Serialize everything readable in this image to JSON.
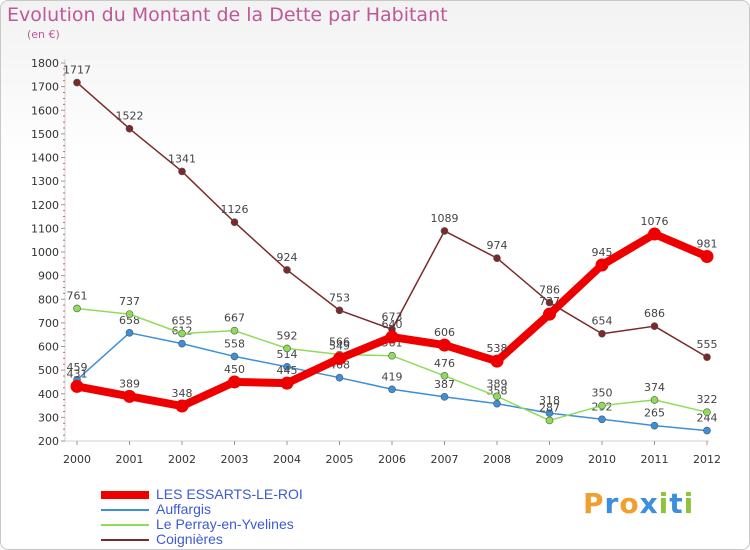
{
  "header": {
    "title": "Evolution du Montant de la Dette par Habitant",
    "subtitle": "(en €)"
  },
  "logo": {
    "letters": [
      "P",
      "r",
      "o",
      "x",
      "i",
      "t",
      "i"
    ],
    "colors": [
      "#f0a030",
      "#3c8fd8",
      "#f0a030",
      "#3c8fd8",
      "#8fc43a",
      "#3c8fd8",
      "#8fc43a"
    ]
  },
  "chart_data": {
    "type": "line",
    "x": [
      "2000",
      "2001",
      "2002",
      "2003",
      "2004",
      "2005",
      "2006",
      "2007",
      "2008",
      "2009",
      "2010",
      "2011",
      "2012"
    ],
    "ylim": [
      200,
      1800
    ],
    "yticks": [
      "200",
      "300",
      "400",
      "500",
      "600",
      "700",
      "800",
      "900",
      "1000",
      "1100",
      "1200",
      "1300",
      "1400",
      "1500",
      "1600",
      "1700",
      "1800"
    ],
    "grid": false,
    "legend_position": "bottom-left",
    "series": [
      {
        "name": "Coignières",
        "color": "#7a2a2a",
        "values": [
          1717,
          1522,
          1341,
          1126,
          924,
          753,
          673,
          1089,
          974,
          786,
          654,
          686,
          555
        ],
        "labels": [
          "1717",
          "1522",
          "1341",
          "1126",
          "924",
          "753",
          "673",
          "1089",
          "974",
          "786",
          "654",
          "686",
          "555"
        ]
      },
      {
        "name": "Auffargis",
        "color": "#3c8fd8",
        "values": [
          459,
          658,
          612,
          558,
          514,
          468,
          419,
          387,
          358,
          318,
          292,
          265,
          244
        ],
        "labels": [
          "459",
          "658",
          "612",
          "558",
          "514",
          "468",
          "419",
          "387",
          "358",
          "318",
          "292",
          "265",
          "244"
        ]
      },
      {
        "name": "Le Perray-en-Yvelines",
        "color": "#8fdc5a",
        "values": [
          761,
          737,
          655,
          667,
          592,
          566,
          561,
          476,
          389,
          287,
          350,
          374,
          322
        ],
        "labels": [
          "761",
          "737",
          "655",
          "667",
          "592",
          "566",
          "561",
          "476",
          "389",
          "287",
          "350",
          "374",
          "322"
        ]
      },
      {
        "name": "LES ESSARTS-LE-ROI",
        "color": "#ee0000",
        "values": [
          431,
          389,
          348,
          450,
          445,
          549,
          640,
          606,
          538,
          737,
          945,
          1076,
          981
        ],
        "labels": [
          "431",
          "389",
          "348",
          "450",
          "445",
          "549",
          "640",
          "606",
          "538",
          "737",
          "945",
          "1076",
          "981"
        ]
      }
    ],
    "legend": [
      "LES ESSARTS-LE-ROI",
      "Auffargis",
      "Le Perray-en-Yvelines",
      "Coignières"
    ]
  }
}
